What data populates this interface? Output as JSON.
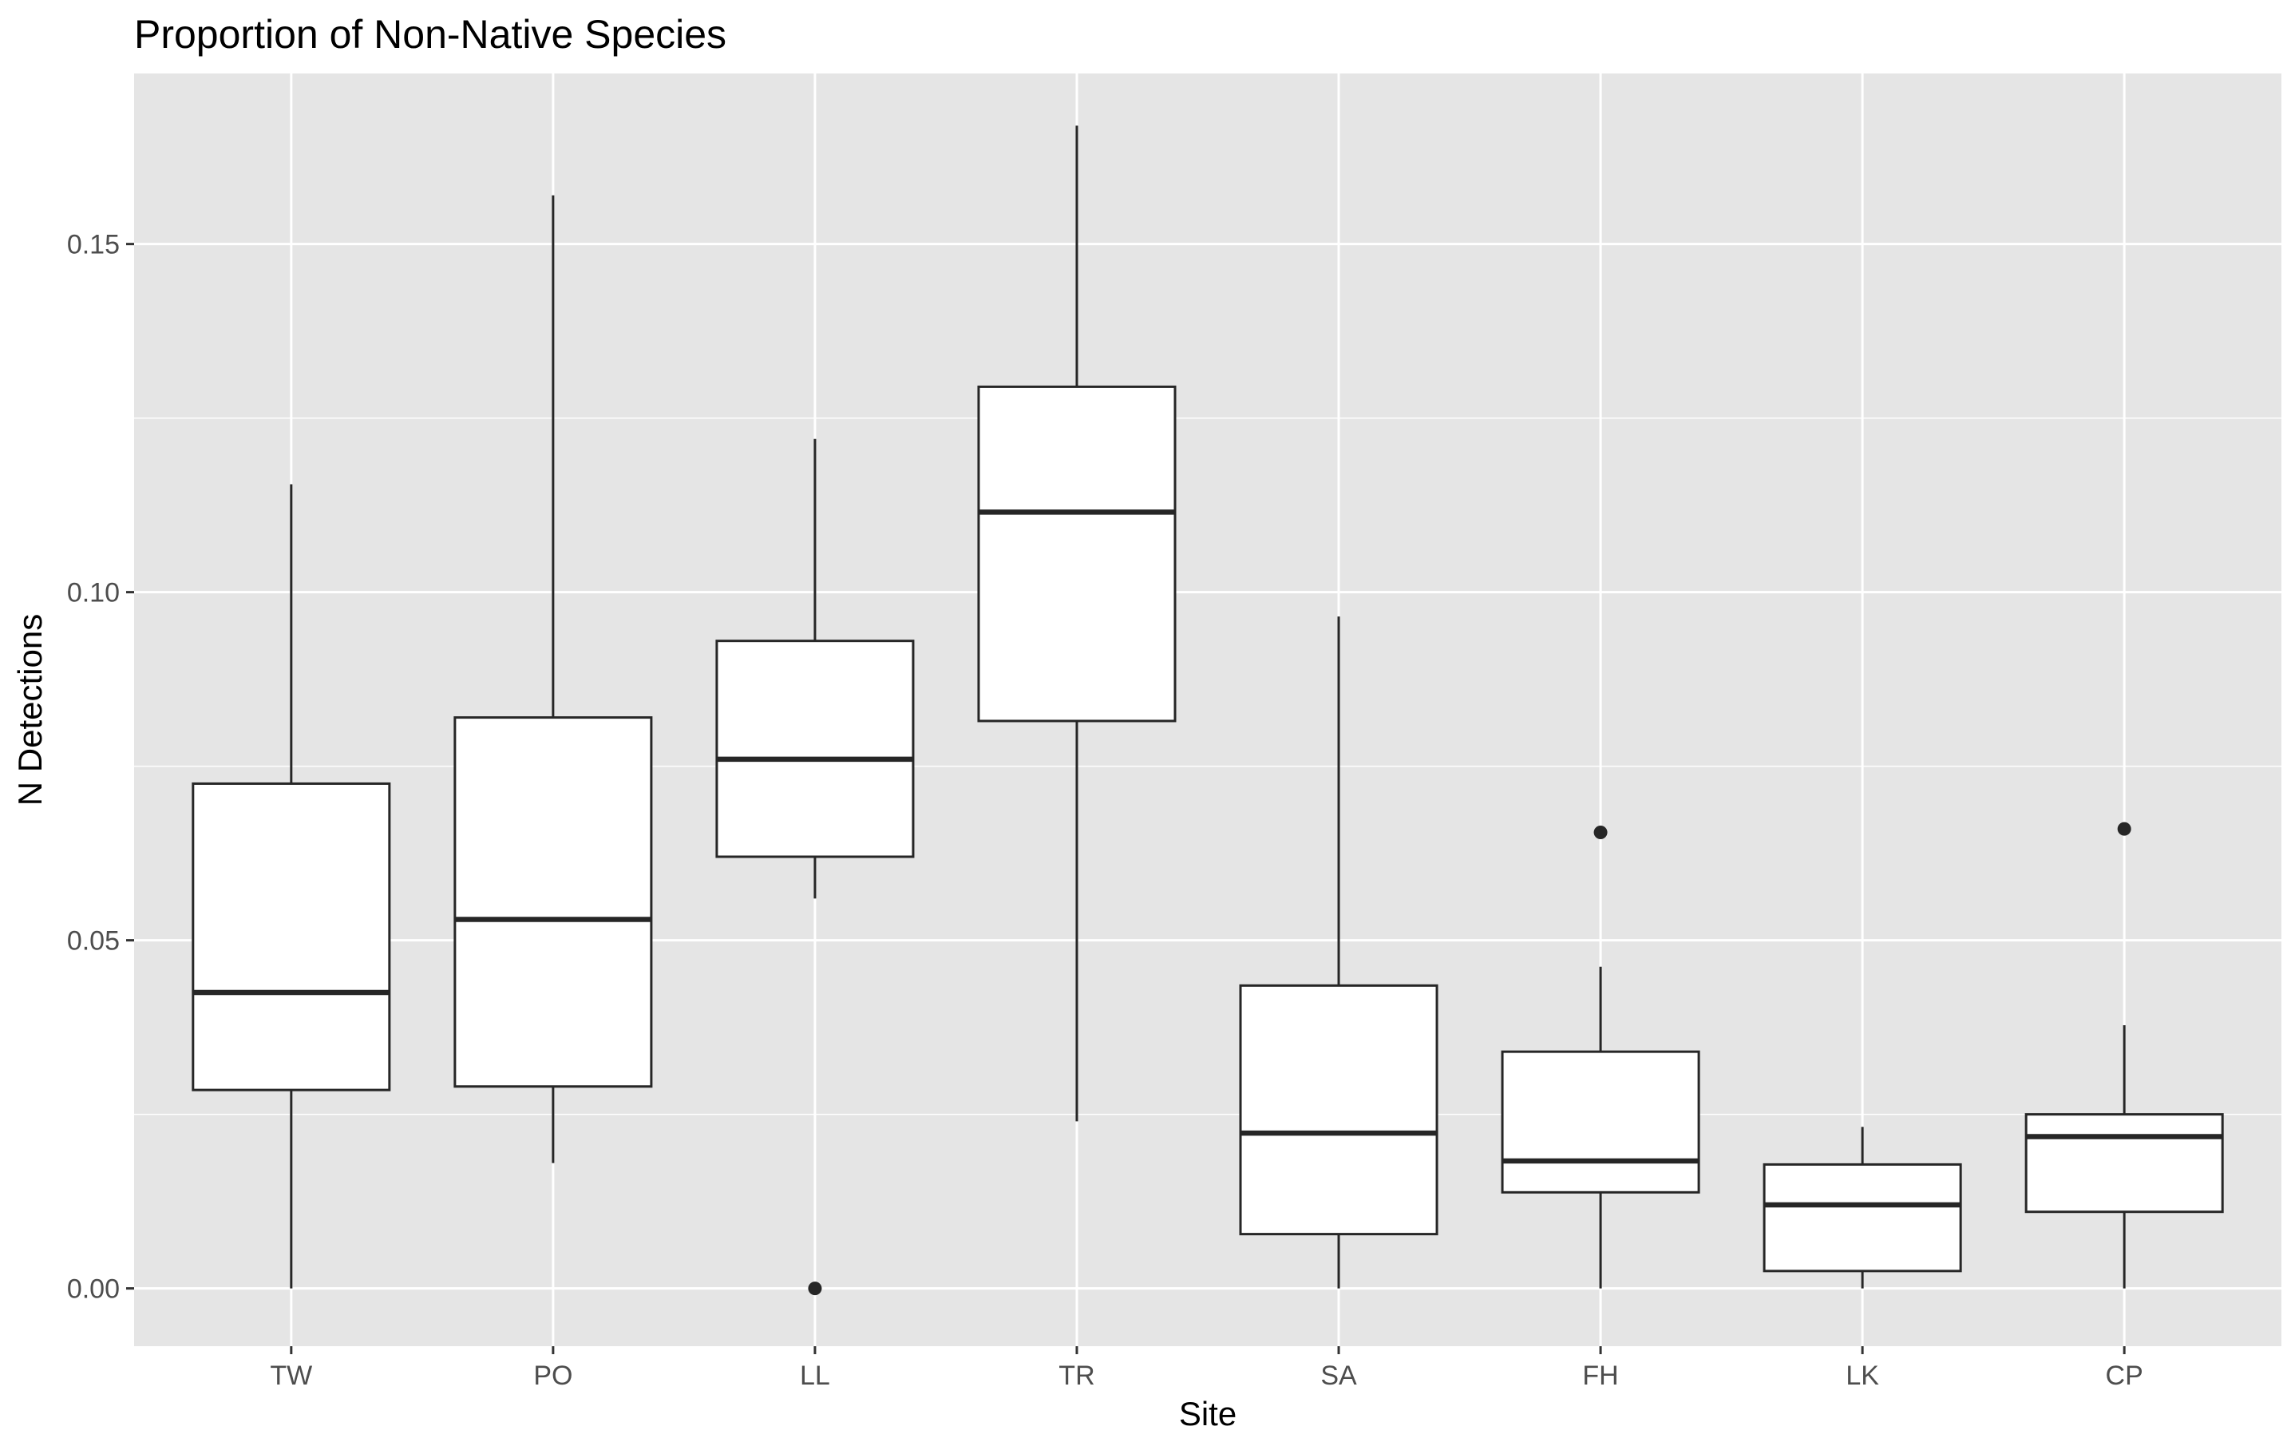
{
  "chart_data": {
    "type": "boxplot",
    "title": "Proportion of Non-Native Species",
    "xlabel": "Site",
    "ylabel": "N Detections",
    "categories": [
      "TW",
      "PO",
      "LL",
      "TR",
      "SA",
      "FH",
      "LK",
      "CP"
    ],
    "boxes": [
      {
        "site": "TW",
        "min": 0.0,
        "q1": 0.0285,
        "median": 0.0425,
        "q3": 0.0725,
        "max": 0.1155,
        "outliers": []
      },
      {
        "site": "PO",
        "min": 0.018,
        "q1": 0.029,
        "median": 0.053,
        "q3": 0.082,
        "max": 0.157,
        "outliers": []
      },
      {
        "site": "LL",
        "min": 0.056,
        "q1": 0.062,
        "median": 0.076,
        "q3": 0.093,
        "max": 0.122,
        "outliers": [
          0.0
        ]
      },
      {
        "site": "TR",
        "min": 0.024,
        "q1": 0.0815,
        "median": 0.1115,
        "q3": 0.1295,
        "max": 0.167,
        "outliers": []
      },
      {
        "site": "SA",
        "min": 0.0,
        "q1": 0.0078,
        "median": 0.0223,
        "q3": 0.0435,
        "max": 0.0965,
        "outliers": []
      },
      {
        "site": "FH",
        "min": 0.0,
        "q1": 0.0138,
        "median": 0.0183,
        "q3": 0.034,
        "max": 0.0462,
        "outliers": [
          0.0655
        ]
      },
      {
        "site": "LK",
        "min": 0.0,
        "q1": 0.0025,
        "median": 0.012,
        "q3": 0.0178,
        "max": 0.0232,
        "outliers": []
      },
      {
        "site": "CP",
        "min": 0.0,
        "q1": 0.011,
        "median": 0.0218,
        "q3": 0.025,
        "max": 0.0378,
        "outliers": [
          0.066
        ]
      }
    ],
    "y_ticks": [
      0.0,
      0.05,
      0.1,
      0.15
    ],
    "y_tick_labels": [
      "0.00",
      "0.05",
      "0.10",
      "0.15"
    ],
    "ylim": [
      -0.0083,
      0.1745
    ],
    "grid": true,
    "colors": {
      "panel_background": "#e5e5e5",
      "grid": "#ffffff",
      "box_fill": "#ffffff",
      "box_stroke": "#262626",
      "tick_text": "#4d4d4d"
    }
  }
}
